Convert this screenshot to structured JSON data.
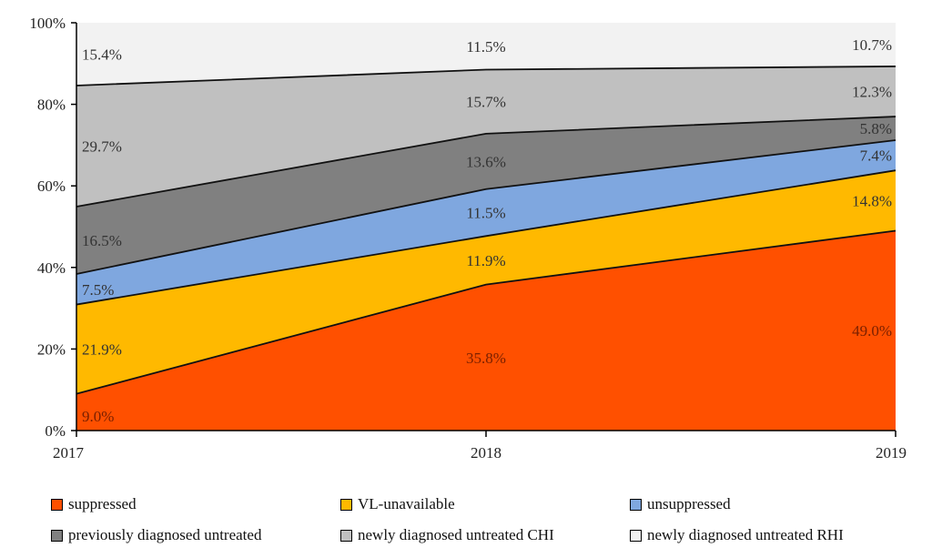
{
  "chart_data": {
    "type": "area",
    "stacked": true,
    "x": [
      "2017",
      "2018",
      "2019"
    ],
    "ylim": [
      0,
      100
    ],
    "yticks": [
      "0%",
      "20%",
      "40%",
      "60%",
      "80%",
      "100%"
    ],
    "series": [
      {
        "name": "suppressed",
        "color": "#FF5000",
        "label_color": "#7a2000",
        "values": [
          9.0,
          35.8,
          49.0
        ],
        "labels": [
          "9.0%",
          "35.8%",
          "49.0%"
        ]
      },
      {
        "name": "VL-unavailable",
        "color": "#FFB900",
        "label_color": "#333333",
        "values": [
          21.9,
          11.9,
          14.8
        ],
        "labels": [
          "21.9%",
          "11.9%",
          "14.8%"
        ]
      },
      {
        "name": "unsuppressed",
        "color": "#7FA7DF",
        "label_color": "#333333",
        "values": [
          7.5,
          11.5,
          7.4
        ],
        "labels": [
          "7.5%",
          "11.5%",
          "7.4%"
        ]
      },
      {
        "name": "previously diagnosed untreated",
        "color": "#808080",
        "label_color": "#333333",
        "values": [
          16.5,
          13.6,
          5.8
        ],
        "labels": [
          "16.5%",
          "13.6%",
          "5.8%"
        ]
      },
      {
        "name": "newly diagnosed untreated CHI",
        "color": "#C0C0C0",
        "label_color": "#333333",
        "values": [
          29.7,
          15.7,
          12.3
        ],
        "labels": [
          "29.7%",
          "15.7%",
          "12.3%"
        ]
      },
      {
        "name": "newly diagnosed untreated RHI",
        "color": "#F2F2F2",
        "label_color": "#333333",
        "values": [
          15.4,
          11.5,
          10.7
        ],
        "labels": [
          "15.4%",
          "11.5%",
          "10.7%"
        ]
      }
    ],
    "legend_position": "bottom"
  },
  "legend": {
    "row1": [
      "suppressed",
      "VL-unavailable",
      "unsuppressed"
    ],
    "row2": [
      "previously diagnosed untreated",
      "newly diagnosed untreated CHI",
      "newly diagnosed untreated RHI"
    ]
  }
}
